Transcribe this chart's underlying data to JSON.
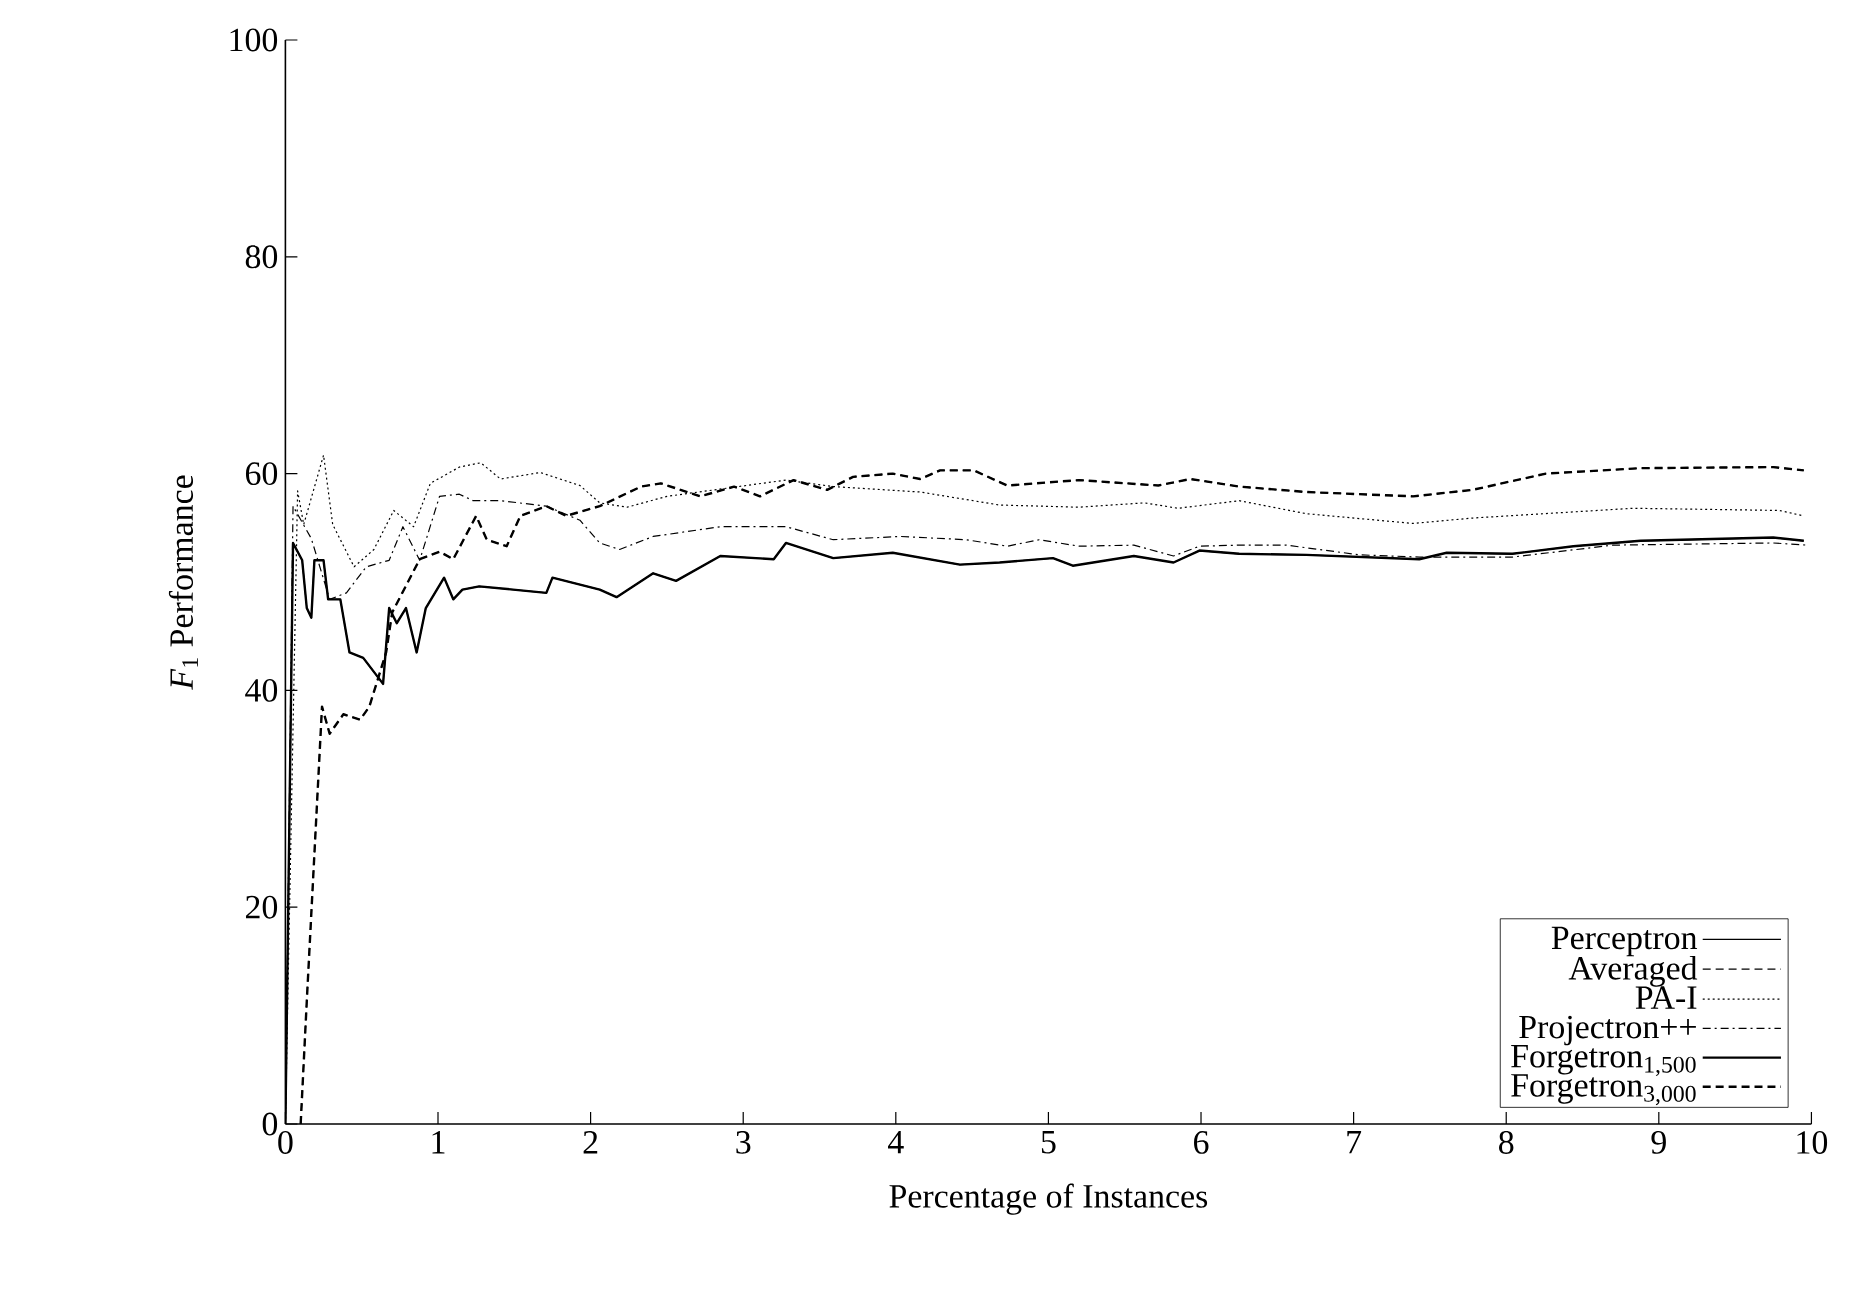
{
  "chart_data": {
    "type": "line",
    "xlabel": "Percentage of Instances",
    "ylabel": "*F*$_{1}$ Performance",
    "xlim": [
      0,
      10
    ],
    "ylim": [
      0,
      100
    ],
    "xticks": [
      0,
      1,
      2,
      3,
      4,
      5,
      6,
      7,
      8,
      9,
      10
    ],
    "yticks": [
      0,
      20,
      40,
      60,
      80,
      100
    ],
    "grid": false,
    "legend": "bottom right",
    "marker": "none",
    "series": [
      {
        "name": "Perceptron",
        "color": "#000000",
        "line_style": "solid",
        "x": [
          0,
          0.05,
          0.11,
          0.14,
          0.17,
          0.19,
          0.25,
          0.28,
          0.36,
          0.42,
          0.51,
          0.64,
          0.68,
          0.73,
          0.79,
          0.86,
          0.92,
          1.04,
          1.1,
          1.16,
          1.27,
          1.71,
          1.75,
          2.06,
          2.17,
          2.41,
          2.56,
          2.85,
          3.2,
          3.28,
          3.59,
          3.98,
          4.42,
          4.68,
          5.03,
          5.16,
          5.56,
          5.82,
          5.99,
          6.25,
          6.69,
          7.43,
          7.61,
          8.04,
          8.44,
          8.88,
          9.75,
          9.95
        ],
        "values": [
          0,
          53.6,
          52,
          47.6,
          46.7,
          52,
          52,
          48.4,
          48.4,
          43.5,
          43,
          40.6,
          47.6,
          46.2,
          47.6,
          43.5,
          47.6,
          50.4,
          48.4,
          49.3,
          49.6,
          49,
          50.4,
          49.3,
          48.6,
          50.8,
          50.1,
          52.4,
          52.1,
          53.6,
          52.2,
          52.7,
          51.6,
          51.8,
          52.2,
          51.5,
          52.4,
          51.8,
          52.9,
          52.6,
          52.5,
          52.1,
          52.7,
          52.6,
          53.3,
          53.8,
          54.1,
          53.8
        ]
      },
      {
        "name": "Averaged",
        "color": "#000000",
        "line_style": "dashed",
        "x": [
          0.1,
          0.14,
          0.24,
          0.29,
          0.38,
          0.49,
          0.55,
          0.66,
          0.7,
          0.88,
          1.01,
          1.1,
          1.25,
          1.32,
          1.45,
          1.54,
          1.71,
          1.84,
          2.06,
          2.33,
          2.46,
          2.72,
          2.94,
          3.11,
          3.33,
          3.55,
          3.72,
          3.98,
          4.16,
          4.29,
          4.51,
          4.73,
          5.2,
          5.72,
          5.93,
          6.25,
          6.69,
          7.39,
          7.78,
          8.26,
          8.88,
          9.75,
          9.95
        ],
        "values": [
          0,
          11.3,
          38.5,
          36,
          37.8,
          37.3,
          38.5,
          43.5,
          47.2,
          52.1,
          52.8,
          52.1,
          56.1,
          53.9,
          53.3,
          56.1,
          57,
          56.1,
          57,
          58.8,
          59.1,
          57.9,
          58.8,
          57.9,
          59.4,
          58.5,
          59.7,
          60,
          59.5,
          60.3,
          60.3,
          58.9,
          59.4,
          58.9,
          59.5,
          58.8,
          58.3,
          57.9,
          58.5,
          60,
          60.5,
          60.6,
          60.3
        ]
      },
      {
        "name": "PA-I",
        "color": "#000000",
        "line_style": "dotted",
        "x": [
          0,
          0.08,
          0.12,
          0.25,
          0.31,
          0.45,
          0.58,
          0.71,
          0.84,
          0.95,
          1.14,
          1.28,
          1.41,
          1.67,
          1.93,
          2.06,
          2.24,
          2.5,
          3.28,
          3.59,
          4.16,
          4.68,
          5.2,
          5.63,
          5.85,
          6.25,
          6.69,
          7.39,
          7.78,
          8.83,
          9.79,
          9.95
        ],
        "values": [
          0,
          58.4,
          55.3,
          61.7,
          55.3,
          51.4,
          53,
          56.6,
          55.1,
          59.1,
          60.6,
          61,
          59.5,
          60.1,
          58.9,
          57.3,
          56.9,
          57.9,
          59.4,
          58.8,
          58.3,
          57.1,
          56.9,
          57.3,
          56.8,
          57.5,
          56.3,
          55.4,
          55.9,
          56.8,
          56.6,
          56.1
        ]
      },
      {
        "name": "Projectron++",
        "color": "#000000",
        "line_style": "dashdot",
        "x": [
          0,
          0.05,
          0.17,
          0.29,
          0.4,
          0.53,
          0.68,
          0.77,
          0.88,
          1.01,
          1.14,
          1.23,
          1.41,
          1.71,
          1.93,
          2.06,
          2.19,
          2.41,
          2.85,
          3.28,
          3.59,
          4.03,
          4.46,
          4.73,
          4.94,
          5.2,
          5.56,
          5.82,
          5.99,
          6.25,
          6.56,
          7.04,
          7.43,
          8.04,
          8.7,
          9.75,
          9.97
        ],
        "values": [
          0,
          57,
          54,
          48.4,
          49,
          51.4,
          52,
          55.1,
          52,
          57.9,
          58.1,
          57.5,
          57.5,
          57,
          55.7,
          53.6,
          53,
          54.2,
          55.1,
          55.1,
          53.9,
          54.2,
          53.9,
          53.3,
          53.9,
          53.3,
          53.4,
          52.4,
          53.3,
          53.4,
          53.4,
          52.5,
          52.3,
          52.3,
          53.4,
          53.6,
          53.4
        ]
      },
      {
        "name": "Forgetron$_{1,500}$",
        "color": "#000000",
        "line_style": "solid",
        "x": [
          0,
          0.05,
          0.11,
          0.14,
          0.17,
          0.19,
          0.25,
          0.28,
          0.36,
          0.42,
          0.51,
          0.64,
          0.68,
          0.73,
          0.79,
          0.86,
          0.92,
          1.04,
          1.1,
          1.16,
          1.27,
          1.71,
          1.75,
          2.06,
          2.17,
          2.41,
          2.56,
          2.85,
          3.2,
          3.28,
          3.59,
          3.98,
          4.42,
          4.68,
          5.03,
          5.16,
          5.56,
          5.82,
          5.99,
          6.25,
          6.69,
          7.43,
          7.61,
          8.04,
          8.44,
          8.88,
          9.75,
          9.95
        ],
        "values": [
          0,
          53.6,
          52,
          47.6,
          46.7,
          52,
          52,
          48.4,
          48.4,
          43.5,
          43,
          40.6,
          47.6,
          46.2,
          47.6,
          43.5,
          47.6,
          50.4,
          48.4,
          49.3,
          49.6,
          49,
          50.4,
          49.3,
          48.6,
          50.8,
          50.1,
          52.4,
          52.1,
          53.6,
          52.2,
          52.7,
          51.6,
          51.8,
          52.2,
          51.5,
          52.4,
          51.8,
          52.9,
          52.6,
          52.5,
          52.1,
          52.7,
          52.6,
          53.3,
          53.8,
          54.1,
          53.8
        ]
      },
      {
        "name": "Forgetron$_{3,000}$",
        "color": "#000000",
        "line_style": "dashed",
        "x": [
          0.1,
          0.14,
          0.24,
          0.29,
          0.38,
          0.49,
          0.55,
          0.66,
          0.7,
          0.88,
          1.01,
          1.1,
          1.25,
          1.32,
          1.45,
          1.54,
          1.71,
          1.84,
          2.06,
          2.33,
          2.46,
          2.72,
          2.94,
          3.11,
          3.33,
          3.55,
          3.72,
          3.98,
          4.16,
          4.29,
          4.51,
          4.73,
          5.2,
          5.72,
          5.93,
          6.25,
          6.69,
          7.39,
          7.78,
          8.26,
          8.88,
          9.75,
          9.95
        ],
        "values": [
          0,
          11.3,
          38.5,
          36,
          37.8,
          37.3,
          38.5,
          43.5,
          47.2,
          52.1,
          52.8,
          52.1,
          56.1,
          53.9,
          53.3,
          56.1,
          57,
          56.1,
          57,
          58.8,
          59.1,
          57.9,
          58.8,
          57.9,
          59.4,
          58.5,
          59.7,
          60,
          59.5,
          60.3,
          60.3,
          58.9,
          59.4,
          58.9,
          59.5,
          58.8,
          58.3,
          57.9,
          58.5,
          60,
          60.5,
          60.6,
          60.3
        ]
      }
    ]
  }
}
